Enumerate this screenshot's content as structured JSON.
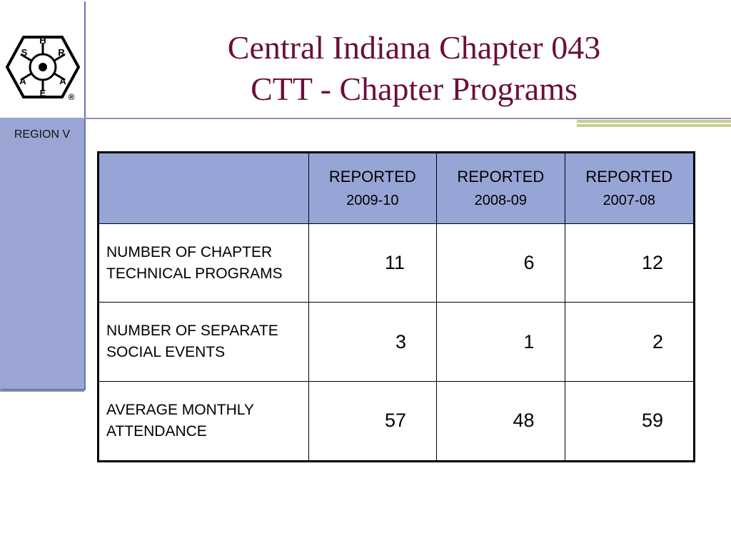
{
  "logo": {
    "name": "ASHRAE",
    "letters": [
      "S",
      "H",
      "R",
      "A",
      "E",
      "A"
    ],
    "registered": "®"
  },
  "region_label": "REGION V",
  "title": {
    "line1": "Central Indiana Chapter 043",
    "line2": "CTT - Chapter Programs"
  },
  "table": {
    "columns": [
      {
        "h1": "REPORTED",
        "h2": "2009-10"
      },
      {
        "h1": "REPORTED",
        "h2": "2008-09"
      },
      {
        "h1": "REPORTED",
        "h2": "2007-08"
      }
    ],
    "rows": [
      {
        "label": "NUMBER OF CHAPTER TECHNICAL PROGRAMS",
        "values": [
          "11",
          "6",
          "12"
        ]
      },
      {
        "label": "NUMBER OF SEPARATE SOCIAL EVENTS",
        "values": [
          "3",
          "1",
          "2"
        ]
      },
      {
        "label": "AVERAGE MONTHLY ATTENDANCE",
        "values": [
          "57",
          "48",
          "59"
        ]
      }
    ]
  },
  "colors": {
    "sidebar": "#9aa5d4",
    "header_fill": "#97a4d6",
    "title_text": "#6b0e3a",
    "accent_bar": "#c9cc8e"
  }
}
